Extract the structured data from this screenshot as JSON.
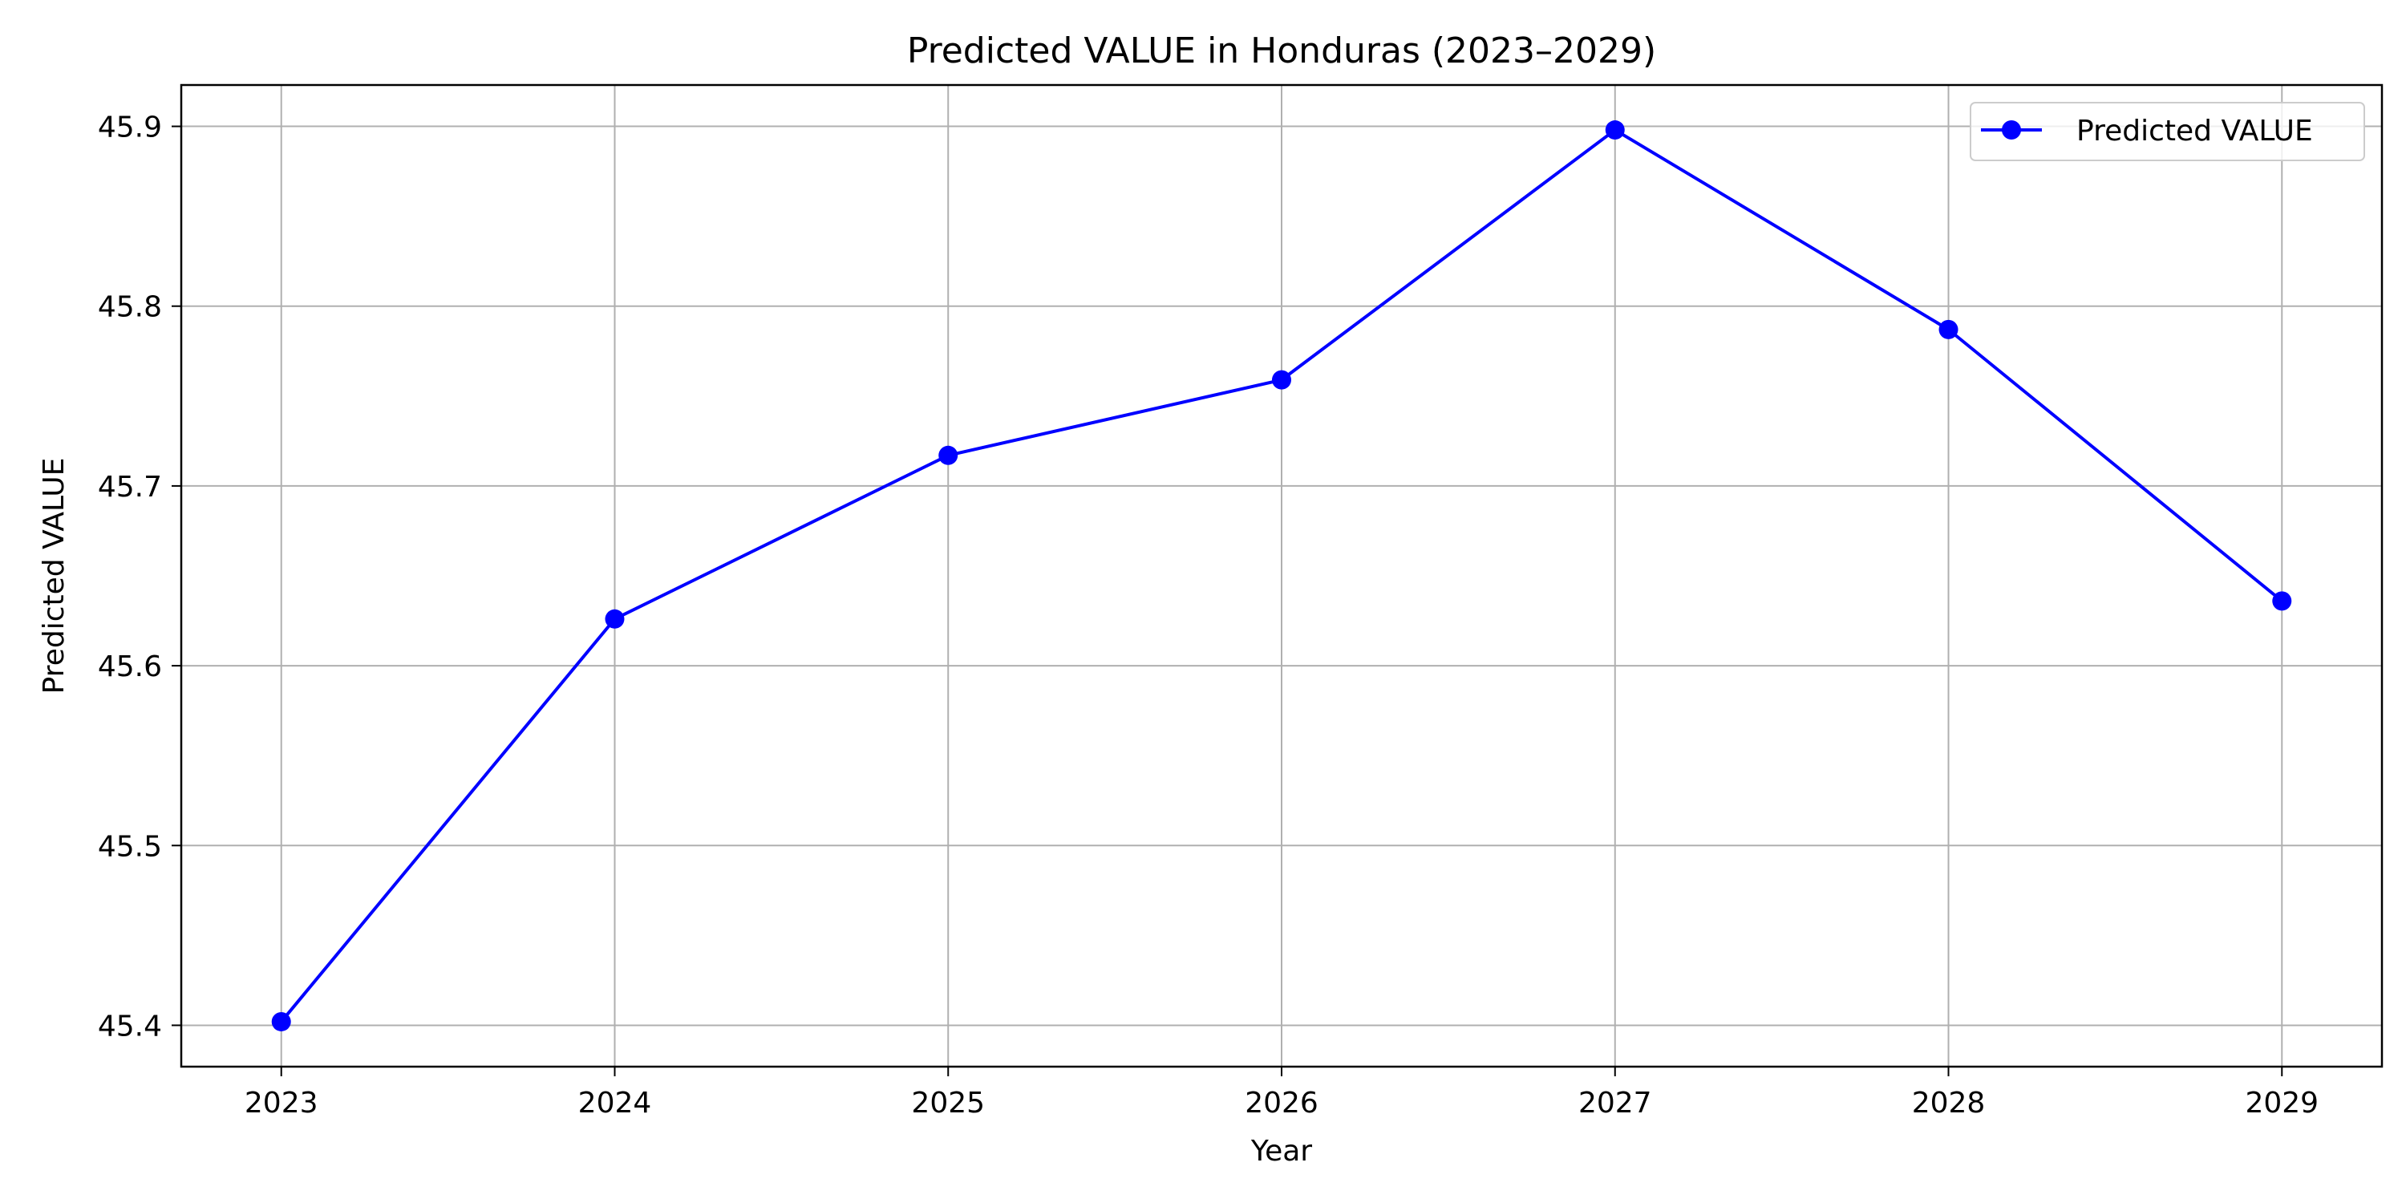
{
  "chart_data": {
    "type": "line",
    "title": "Predicted VALUE in Honduras (2023–2029)",
    "xlabel": "Year",
    "ylabel": "Predicted VALUE",
    "x": [
      2023,
      2024,
      2025,
      2026,
      2027,
      2028,
      2029
    ],
    "x_ticks": [
      "2023",
      "2024",
      "2025",
      "2026",
      "2027",
      "2028",
      "2029"
    ],
    "y_ticks": [
      "45.4",
      "45.5",
      "45.6",
      "45.7",
      "45.8",
      "45.9"
    ],
    "y_tick_values": [
      45.4,
      45.5,
      45.6,
      45.7,
      45.8,
      45.9
    ],
    "xlim": [
      2022.7,
      2029.3
    ],
    "ylim": [
      45.377,
      45.923
    ],
    "grid": true,
    "legend_position": "top-right",
    "series": [
      {
        "name": "Predicted VALUE",
        "color": "#0000ff",
        "marker": "circle",
        "values": [
          45.402,
          45.626,
          45.717,
          45.759,
          45.898,
          45.787,
          45.636
        ]
      }
    ]
  }
}
